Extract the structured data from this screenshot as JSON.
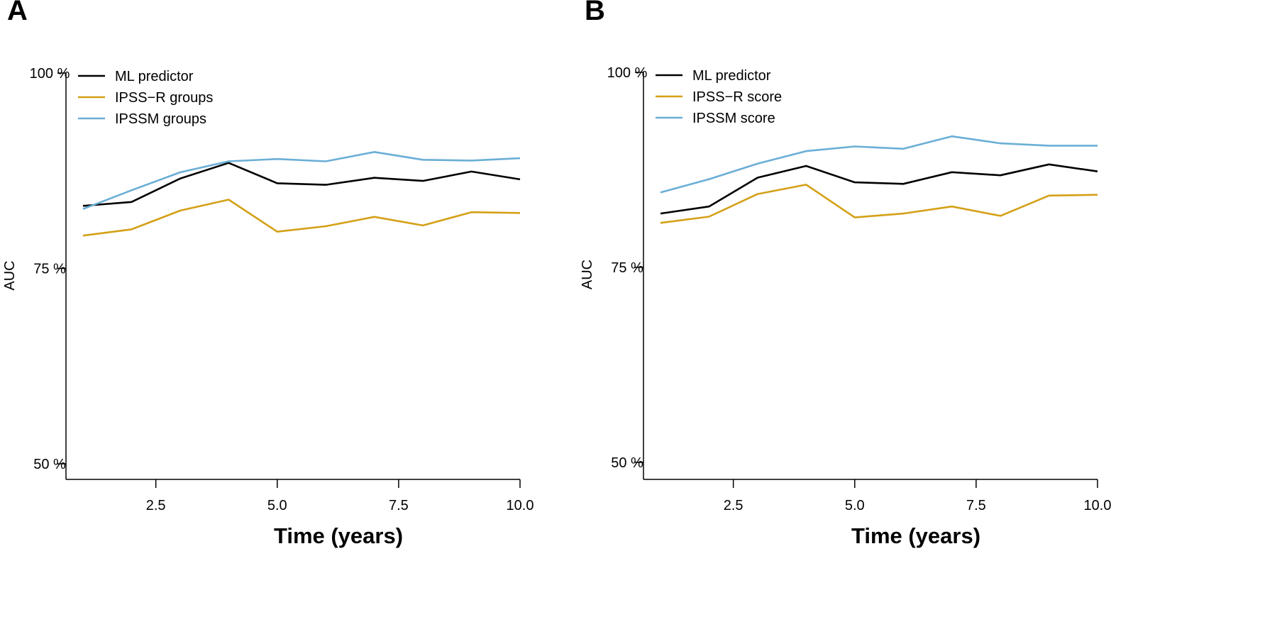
{
  "chart_data": [
    {
      "type": "line",
      "panel_label": "A",
      "xlabel": "Time (years)",
      "ylabel": "AUC",
      "xlim": [
        0.8,
        10.0
      ],
      "ylim": [
        48,
        100.5
      ],
      "xticks": [
        2.5,
        5.0,
        7.5,
        10.0
      ],
      "xtick_labels": [
        "2.5",
        "5.0",
        "7.5",
        "10.0"
      ],
      "yticks": [
        50,
        75,
        100
      ],
      "ytick_labels": [
        "50 %",
        "75 %",
        "100 %"
      ],
      "legend_position": "top-left",
      "x": [
        1,
        2,
        3,
        4,
        5,
        6,
        7,
        8,
        9,
        10
      ],
      "series": [
        {
          "name": "ML predictor",
          "color": "#000000",
          "values": [
            83.0,
            83.5,
            86.5,
            88.5,
            85.9,
            85.7,
            86.6,
            86.2,
            87.4,
            86.4
          ]
        },
        {
          "name": "IPSS−R groups",
          "color": "#d4a017",
          "values": [
            79.2,
            80.0,
            82.4,
            83.8,
            79.7,
            80.4,
            81.6,
            80.5,
            82.2,
            82.1
          ]
        },
        {
          "name": "IPSSM groups",
          "color": "#6aaed6",
          "values": [
            82.6,
            85.0,
            87.3,
            88.7,
            89.0,
            88.7,
            89.9,
            88.9,
            88.8,
            89.1
          ]
        }
      ]
    },
    {
      "type": "line",
      "panel_label": "B",
      "xlabel": "Time (years)",
      "ylabel": "AUC",
      "xlim": [
        0.8,
        10.0
      ],
      "ylim": [
        48,
        100.5
      ],
      "xticks": [
        2.5,
        5.0,
        7.5,
        10.0
      ],
      "xtick_labels": [
        "2.5",
        "5.0",
        "7.5",
        "10.0"
      ],
      "yticks": [
        50,
        75,
        100
      ],
      "ytick_labels": [
        "50 %",
        "75 %",
        "100 %"
      ],
      "legend_position": "top-left",
      "x": [
        1,
        2,
        3,
        4,
        5,
        6,
        7,
        8,
        9,
        10
      ],
      "series": [
        {
          "name": "ML predictor",
          "color": "#000000",
          "values": [
            81.9,
            82.8,
            86.5,
            88.0,
            85.9,
            85.7,
            87.2,
            86.8,
            88.2,
            87.3
          ]
        },
        {
          "name": "IPSS−R score",
          "color": "#d4a017",
          "values": [
            80.7,
            81.5,
            84.4,
            85.6,
            81.4,
            81.9,
            82.8,
            81.6,
            84.2,
            84.3
          ]
        },
        {
          "name": "IPSSM score",
          "color": "#6aaed6",
          "values": [
            84.6,
            86.3,
            88.3,
            89.9,
            90.5,
            90.2,
            91.8,
            90.9,
            90.6,
            90.6
          ]
        }
      ]
    }
  ]
}
